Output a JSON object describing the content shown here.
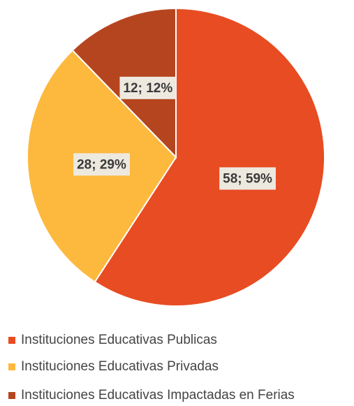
{
  "chart_data": {
    "type": "pie",
    "categories": [
      "Instituciones Educativas Publicas",
      "Instituciones Educativas Privadas",
      "Instituciones Educativas Impactadas en Ferias"
    ],
    "values": [
      58,
      28,
      12
    ],
    "value_labels": [
      "58; 59%",
      "28; 29%",
      "12; 12%"
    ],
    "colors": [
      "#e84c22",
      "#fdb93e",
      "#b5451f"
    ],
    "legend": "bottom"
  }
}
